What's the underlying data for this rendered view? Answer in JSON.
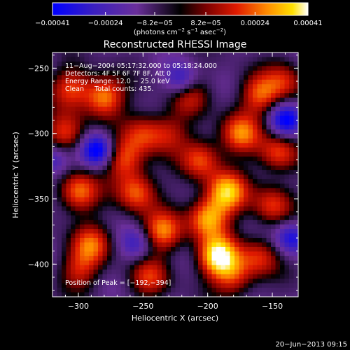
{
  "chart_data": {
    "type": "heatmap",
    "title": "Reconstructed RHESSI Image",
    "xlabel": "Heliocentric X (arcsec)",
    "ylabel": "Heliocentric Y (arcsec)",
    "xlim": [
      -320,
      -130
    ],
    "ylim": [
      -425,
      -238
    ],
    "x_ticks": [
      -300,
      -250,
      -200,
      -150
    ],
    "y_ticks": [
      -400,
      -350,
      -300,
      -250
    ],
    "x_tick_labels": [
      "−300",
      "−250",
      "−200",
      "−150"
    ],
    "y_tick_labels": [
      "−400",
      "−350",
      "−300",
      "−250"
    ],
    "colorbar": {
      "range": [
        -0.00041,
        0.00041
      ],
      "tick_values": [
        -0.00041,
        -0.00024,
        -8.2e-05,
        8.2e-05,
        0.00024,
        0.00041
      ],
      "tick_labels": [
        "−0.00041",
        "−0.00024",
        "−8.2e−05",
        "8.2e−05",
        "0.00024",
        "0.00041"
      ],
      "unit_prefix": "(photons cm",
      "unit_exp1": "−2",
      "unit_mid": " s",
      "unit_exp2": "−1",
      "unit_mid2": " asec",
      "unit_exp3": "−2",
      "unit_suffix": ")"
    },
    "annotations": [
      "11−Aug−2004 05:17:32.000 to 05:18:24.000",
      "Detectors: 4F 5F 6F 7F 8F, Att 0",
      "Energy Range: 12.0 − 25.0 keV",
      "Clean     Total counts: 435."
    ],
    "peak_label": "Position of Peak = [−192,−394]",
    "peak": [
      -192,
      -394
    ],
    "blobs": [
      {
        "x": -192,
        "y": -394,
        "v": 1.0
      },
      {
        "x": -185,
        "y": -345,
        "v": 0.85
      },
      {
        "x": -200,
        "y": -365,
        "v": 0.8
      },
      {
        "x": -175,
        "y": -300,
        "v": 0.7
      },
      {
        "x": -205,
        "y": -320,
        "v": 0.6
      },
      {
        "x": -280,
        "y": -272,
        "v": 0.75
      },
      {
        "x": -250,
        "y": -300,
        "v": 0.5
      },
      {
        "x": -305,
        "y": -265,
        "v": 0.55
      },
      {
        "x": -310,
        "y": -300,
        "v": 0.6
      },
      {
        "x": -300,
        "y": -345,
        "v": 0.7
      },
      {
        "x": -290,
        "y": -385,
        "v": 0.6
      },
      {
        "x": -300,
        "y": -405,
        "v": 0.45
      },
      {
        "x": -255,
        "y": -345,
        "v": 0.65
      },
      {
        "x": -235,
        "y": -375,
        "v": 0.7
      },
      {
        "x": -245,
        "y": -410,
        "v": 0.5
      },
      {
        "x": -265,
        "y": -320,
        "v": 0.6
      },
      {
        "x": -160,
        "y": -270,
        "v": 0.6
      },
      {
        "x": -145,
        "y": -315,
        "v": 0.6
      },
      {
        "x": -150,
        "y": -355,
        "v": 0.55
      },
      {
        "x": -160,
        "y": -395,
        "v": 0.5
      },
      {
        "x": -215,
        "y": -270,
        "v": 0.5
      },
      {
        "x": -230,
        "y": -300,
        "v": 0.4
      },
      {
        "x": -180,
        "y": -410,
        "v": 0.5
      },
      {
        "x": -140,
        "y": -260,
        "v": 0.45
      }
    ],
    "dips": [
      {
        "x": -285,
        "y": -313,
        "v": 0.7
      },
      {
        "x": -140,
        "y": -290,
        "v": 0.6
      },
      {
        "x": -220,
        "y": -260,
        "v": 0.5
      },
      {
        "x": -320,
        "y": -320,
        "v": 0.4
      },
      {
        "x": -135,
        "y": -380,
        "v": 0.5
      },
      {
        "x": -255,
        "y": -385,
        "v": 0.35
      }
    ]
  },
  "footer": {
    "date": "20−Jun−2013 09:15"
  }
}
